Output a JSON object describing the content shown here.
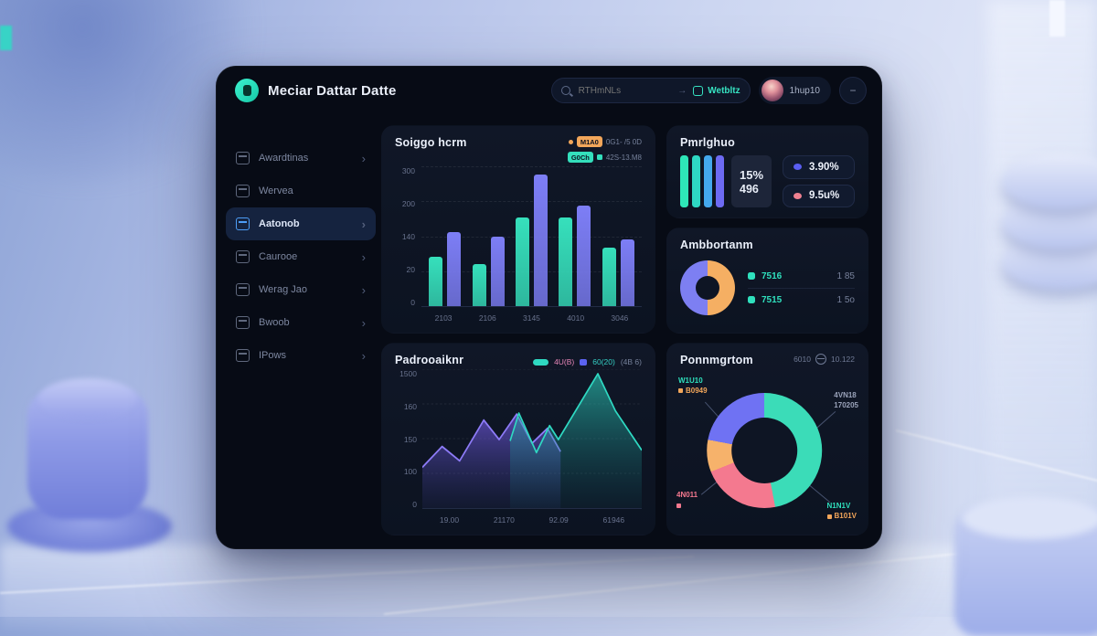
{
  "window": {
    "title": "Meciar Dattar Datte"
  },
  "header": {
    "search_placeholder": "RTHmNLs",
    "search_arrow": "→",
    "action_label": "Wetbltz",
    "username": "1hup10",
    "menu_glyph": "−"
  },
  "sidebar": {
    "items": [
      {
        "id": "dashboard",
        "icon": "monitor-icon",
        "label": "Awardtinas",
        "active": false,
        "chevron": true
      },
      {
        "id": "orders",
        "icon": "card-icon",
        "label": "Wervea",
        "active": false,
        "chevron": false
      },
      {
        "id": "reports",
        "icon": "chart-icon",
        "label": "Aatonob",
        "active": true,
        "chevron": true
      },
      {
        "id": "documents",
        "icon": "folder-icon",
        "label": "Caurooe",
        "active": false,
        "chevron": true
      },
      {
        "id": "calendar",
        "icon": "calendar-icon",
        "label": "Werag Jao",
        "active": false,
        "chevron": true
      },
      {
        "id": "layers",
        "icon": "layers-icon",
        "label": "Bwoob",
        "active": false,
        "chevron": true
      },
      {
        "id": "profile",
        "icon": "user-icon",
        "label": "IPows",
        "active": false,
        "chevron": true
      }
    ]
  },
  "cards": {
    "bar": {
      "title": "Soiggo hcrm",
      "legend": [
        {
          "dot": true,
          "badge": "M1A0",
          "square": false,
          "text": "0G1- /5 0D",
          "color": "#f2a65a"
        },
        {
          "dot": false,
          "badge": "G0Ch",
          "square": true,
          "text": "42S-13.M8",
          "color": "#34dfbc"
        }
      ]
    },
    "stats": {
      "title": "Pmrlghuo",
      "value_pct": "15%",
      "value_num": "496",
      "bar_colors": [
        "#2ee6b8",
        "#2ed8c4",
        "#44a9ee",
        "#6d6af2"
      ],
      "metrics": [
        {
          "color": "#5a5ef2",
          "label": "3.90%"
        },
        {
          "color": "#ee8090",
          "label": "9.5u%"
        }
      ]
    },
    "donut1": {
      "title": "Ambbortanm",
      "rows": [
        {
          "label": "7516",
          "value": "1 85"
        },
        {
          "label": "7515",
          "value": "1 5o"
        }
      ]
    },
    "line": {
      "title": "Padrooaiknr",
      "legend": {
        "label_pink": "4U(B)",
        "label_blue": "60(20)",
        "label_gray": "(4B 6)"
      }
    },
    "donut2": {
      "title": "Ponnmgrtom",
      "meta_left": "6010",
      "meta_right": "10.122",
      "callouts": {
        "tl": {
          "label": "W1U10",
          "sub": "B0949"
        },
        "r": {
          "label": "4VN18",
          "sub": "170205"
        },
        "br": {
          "label": "N1N1V",
          "sub": "B101V"
        },
        "bl": {
          "label": "4N011"
        }
      }
    }
  },
  "chart_data": [
    {
      "type": "bar",
      "title": "Soiggo hcrm",
      "categories": [
        "2103",
        "2106",
        "3145",
        "4010",
        "3046"
      ],
      "series": [
        {
          "name": "teal",
          "color": "#36e0bc",
          "values": [
            88,
            76,
            158,
            158,
            105
          ]
        },
        {
          "name": "purple",
          "color": "#7d7ef6",
          "values": [
            132,
            125,
            235,
            180,
            120
          ]
        }
      ],
      "y_ticks": [
        "300",
        "200",
        "140",
        "20",
        "0"
      ],
      "ylim": [
        0,
        250
      ],
      "grid": true,
      "legend_position": "top-right"
    },
    {
      "type": "pie",
      "title": "Ambbortanm",
      "donut": true,
      "slices": [
        {
          "label": "orange-half",
          "value": 50,
          "color": "#f5af63"
        },
        {
          "label": "purple-half",
          "value": 50,
          "color": "#7d7ff2"
        }
      ]
    },
    {
      "type": "area",
      "title": "Padrooaiknr",
      "x_ticks": [
        "19.00",
        "21170",
        "92.09",
        "61946"
      ],
      "y_ticks": [
        "1500",
        "160",
        "150",
        "100",
        "0"
      ],
      "ylim": [
        0,
        300
      ],
      "grid": true,
      "series": [
        {
          "name": "purple",
          "color": "#8d7bf7",
          "fill": "gradPurple",
          "points": [
            [
              0,
              88
            ],
            [
              9,
              133
            ],
            [
              17,
              102
            ],
            [
              28,
              190
            ],
            [
              35,
              148
            ],
            [
              43,
              203
            ],
            [
              50,
              140
            ],
            [
              57,
              172
            ],
            [
              63,
              122
            ]
          ]
        },
        {
          "name": "teal",
          "color": "#2fd9c2",
          "fill": "gradTeal",
          "points": [
            [
              40,
              145
            ],
            [
              44,
              205
            ],
            [
              52,
              120
            ],
            [
              58,
              178
            ],
            [
              62,
              148
            ],
            [
              80,
              290
            ],
            [
              88,
              210
            ],
            [
              100,
              125
            ]
          ]
        }
      ]
    },
    {
      "type": "pie",
      "title": "Ponnmgrtom",
      "donut": true,
      "slices": [
        {
          "label": "teal",
          "value": 47,
          "color": "#3bdcb8"
        },
        {
          "label": "pink",
          "value": 22,
          "color": "#f4798f"
        },
        {
          "label": "orange",
          "value": 9,
          "color": "#f6b26b"
        },
        {
          "label": "purple",
          "value": 22,
          "color": "#6f72f3"
        }
      ]
    }
  ]
}
